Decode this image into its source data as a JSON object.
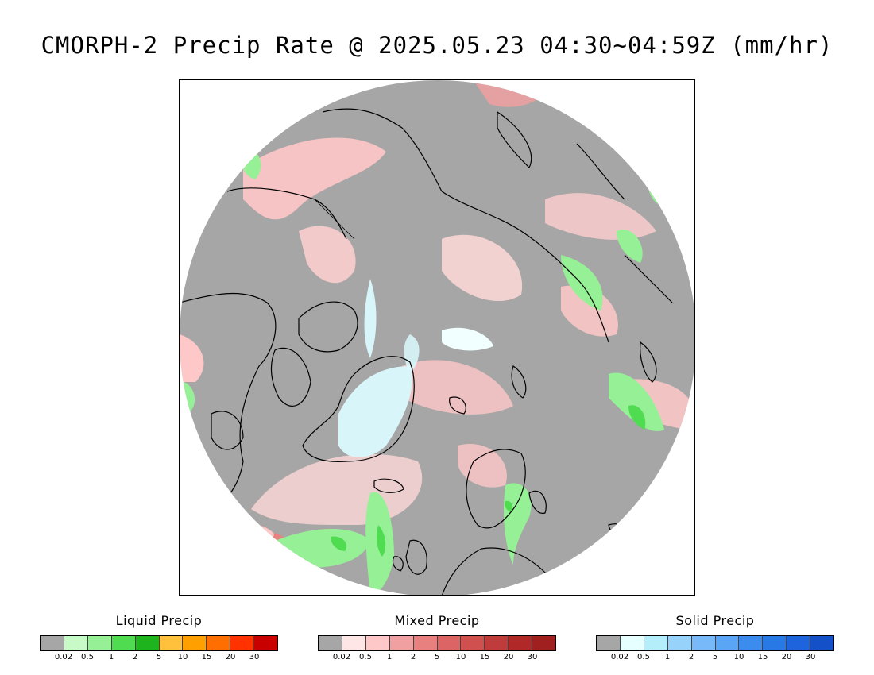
{
  "title": "CMORPH-2 Precip Rate @ 2025.05.23 04:30~04:59Z (mm/hr)",
  "legends": [
    {
      "title": "Liquid Precip",
      "colors": [
        "#a6a6a6",
        "#c8fac8",
        "#96f096",
        "#50dc50",
        "#1eb41e",
        "#ffc03c",
        "#ffa000",
        "#ff6e00",
        "#ff3200",
        "#c80000"
      ],
      "ticks": [
        "0.02",
        "0.5",
        "1",
        "2",
        "5",
        "10",
        "15",
        "20",
        "30"
      ]
    },
    {
      "title": "Mixed Precip",
      "colors": [
        "#a6a6a6",
        "#ffe6e6",
        "#ffc8c8",
        "#f0a0a0",
        "#e88080",
        "#dc6464",
        "#d05050",
        "#c03c3c",
        "#b02828",
        "#a02020"
      ],
      "ticks": [
        "0.02",
        "0.5",
        "1",
        "2",
        "5",
        "10",
        "15",
        "20",
        "30"
      ]
    },
    {
      "title": "Solid Precip",
      "colors": [
        "#a6a6a6",
        "#e6ffff",
        "#b4eefa",
        "#96d2fa",
        "#78b9fa",
        "#5aa5f5",
        "#3c8cf0",
        "#2878e6",
        "#1e64dc",
        "#1450c8"
      ],
      "ticks": [
        "0.02",
        "0.5",
        "1",
        "2",
        "5",
        "10",
        "15",
        "20",
        "30"
      ]
    }
  ],
  "map": {
    "projection": "north-polar-stereographic",
    "no_precip_color": "#a6a6a6",
    "coastline_color": "#000000"
  }
}
